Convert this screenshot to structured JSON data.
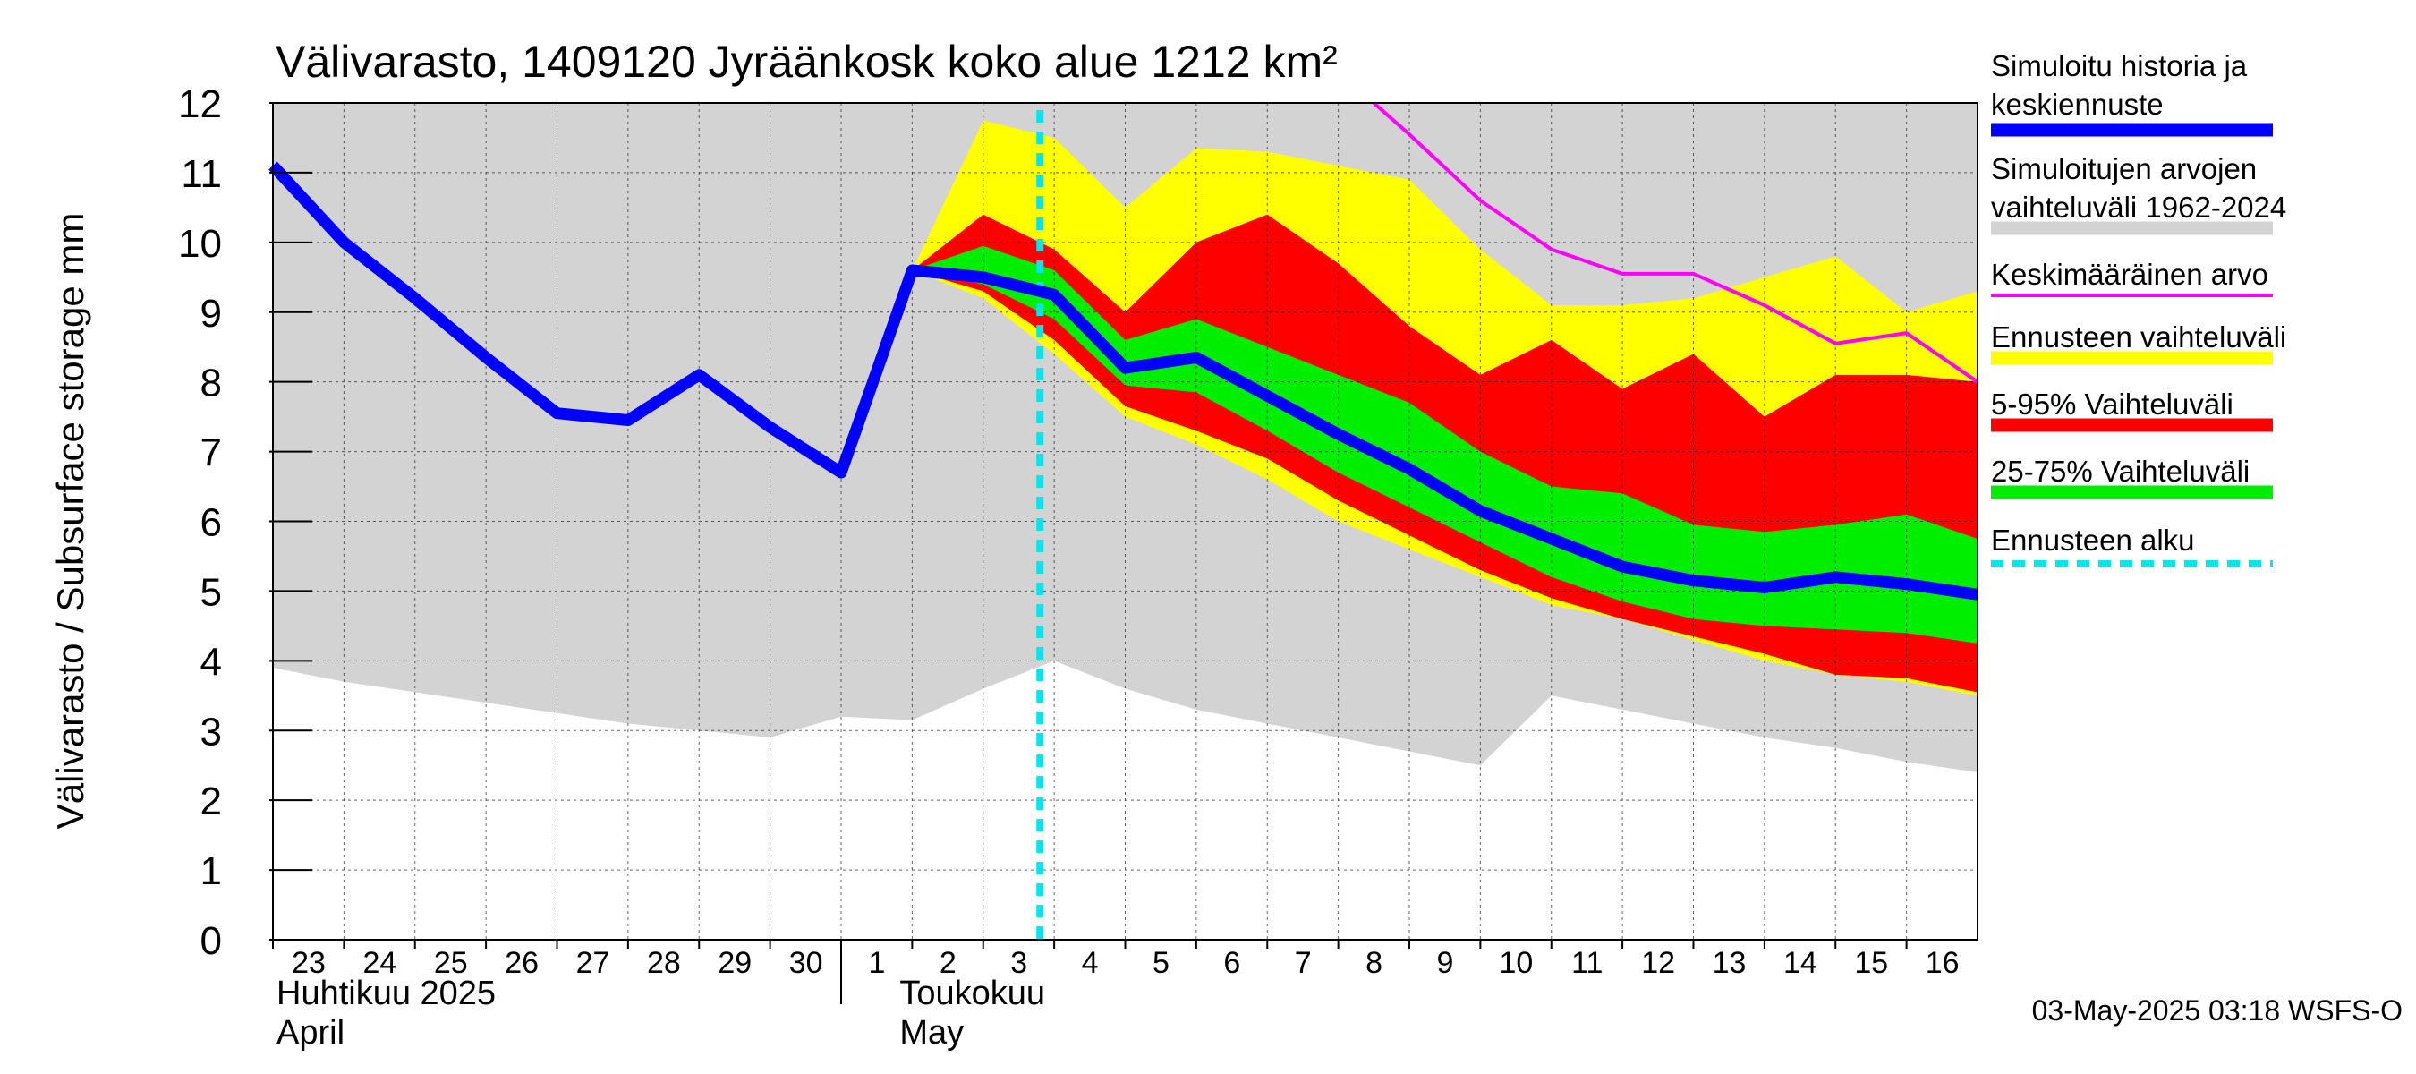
{
  "chart_data": {
    "type": "area",
    "title": "Välivarasto, 1409120 Jyräänkosk koko alue 1212 km²",
    "ylabel": "Välivarasto / Subsurface storage  mm",
    "ylim": [
      0,
      12
    ],
    "yticks": [
      0,
      1,
      2,
      3,
      4,
      5,
      6,
      7,
      8,
      9,
      10,
      11,
      12
    ],
    "grid": true,
    "legend_position": "right",
    "x_days": [
      "23",
      "24",
      "25",
      "26",
      "27",
      "28",
      "29",
      "30",
      "1",
      "2",
      "3",
      "4",
      "5",
      "6",
      "7",
      "8",
      "9",
      "10",
      "11",
      "12",
      "13",
      "14",
      "15",
      "16"
    ],
    "month_labels": [
      {
        "line1": "Huhtikuu  2025",
        "line2": "April"
      },
      {
        "line1": "Toukokuu",
        "line2": "May"
      }
    ],
    "forecast_start_day": 10.8,
    "series": [
      {
        "name": "Simuloitujen arvojen vaihteluväli 1962-2024",
        "color": "#d3d3d3",
        "x": [
          0,
          1,
          2,
          3,
          4,
          5,
          6,
          7,
          8,
          9,
          10,
          11,
          12,
          13,
          14,
          15,
          16,
          17,
          18,
          19,
          20,
          21,
          22,
          23,
          24
        ],
        "lower": [
          3.9,
          3.7,
          3.55,
          3.4,
          3.25,
          3.1,
          3.0,
          2.9,
          3.2,
          3.15,
          3.6,
          4.0,
          3.6,
          3.3,
          3.1,
          2.9,
          2.7,
          2.5,
          3.5,
          3.3,
          3.1,
          2.9,
          2.75,
          2.55,
          2.4
        ],
        "upper": [
          12,
          12,
          12,
          12,
          12,
          12,
          12,
          12,
          12,
          12,
          12,
          12,
          12,
          12,
          12,
          12,
          12,
          12,
          12,
          12,
          12,
          12,
          12,
          12,
          12
        ]
      },
      {
        "name": "Ennusteen vaihteluväli",
        "color": "#ffff00",
        "x": [
          9,
          10,
          11,
          12,
          13,
          14,
          15,
          16,
          17,
          18,
          19,
          20,
          21,
          22,
          23,
          24
        ],
        "lower": [
          9.6,
          9.2,
          8.4,
          7.5,
          7.1,
          6.6,
          6.0,
          5.6,
          5.2,
          4.8,
          4.6,
          4.3,
          4.0,
          3.8,
          3.7,
          3.5
        ],
        "upper": [
          9.6,
          11.75,
          11.5,
          10.5,
          11.35,
          11.3,
          11.1,
          10.9,
          9.9,
          9.1,
          9.1,
          9.2,
          9.5,
          9.8,
          9.0,
          9.3
        ]
      },
      {
        "name": "5-95% Vaihteluväli",
        "color": "#ff0000",
        "x": [
          9,
          10,
          11,
          12,
          13,
          14,
          15,
          16,
          17,
          18,
          19,
          20,
          21,
          22,
          23,
          24
        ],
        "lower": [
          9.6,
          9.3,
          8.6,
          7.65,
          7.3,
          6.9,
          6.3,
          5.8,
          5.3,
          4.9,
          4.6,
          4.35,
          4.1,
          3.8,
          3.75,
          3.55
        ],
        "upper": [
          9.6,
          10.4,
          9.9,
          9.0,
          10.0,
          10.4,
          9.7,
          8.8,
          8.1,
          8.6,
          7.9,
          8.4,
          7.5,
          8.1,
          8.1,
          8.0
        ]
      },
      {
        "name": "25-75% Vaihteluväli",
        "color": "#00ee00",
        "x": [
          9,
          10,
          11,
          12,
          13,
          14,
          15,
          16,
          17,
          18,
          19,
          20,
          21,
          22,
          23,
          24
        ],
        "lower": [
          9.6,
          9.4,
          8.9,
          7.95,
          7.85,
          7.3,
          6.7,
          6.2,
          5.7,
          5.2,
          4.85,
          4.6,
          4.5,
          4.45,
          4.4,
          4.25
        ],
        "upper": [
          9.6,
          9.95,
          9.6,
          8.6,
          8.9,
          8.5,
          8.1,
          7.7,
          7.0,
          6.5,
          6.4,
          5.95,
          5.85,
          5.95,
          6.1,
          5.75
        ]
      },
      {
        "name": "Keskimääräinen arvo",
        "color": "#ff00ff",
        "x": [
          15.5,
          16,
          17,
          18,
          19,
          20,
          21,
          22,
          23,
          24
        ],
        "y": [
          12.0,
          11.55,
          10.6,
          9.9,
          9.55,
          9.55,
          9.1,
          8.55,
          8.7,
          8.0
        ]
      },
      {
        "name": "Simuloitu historia ja keskiennuste",
        "color": "#0000ff",
        "x": [
          0,
          1,
          2,
          3,
          4,
          5,
          6,
          7,
          8,
          9,
          10,
          11,
          12,
          13,
          14,
          15,
          16,
          17,
          18,
          19,
          20,
          21,
          22,
          23,
          24
        ],
        "y": [
          11.1,
          10.0,
          9.2,
          8.35,
          7.55,
          7.45,
          8.1,
          7.35,
          6.7,
          9.6,
          9.5,
          9.25,
          8.2,
          8.35,
          7.8,
          7.25,
          6.75,
          6.15,
          5.75,
          5.35,
          5.15,
          5.05,
          5.2,
          5.1,
          4.95
        ]
      }
    ],
    "legend": [
      {
        "label": "Simuloitu historia ja keskiennuste",
        "color": "#0000ff",
        "style": "thick"
      },
      {
        "label": "Simuloitujen arvojen vaihteluväli 1962-2024",
        "color": "#d3d3d3",
        "style": "thick"
      },
      {
        "label": "Keskimääräinen arvo",
        "color": "#ff00ff",
        "style": "thin"
      },
      {
        "label": "Ennusteen vaihteluväli",
        "color": "#ffff00",
        "style": "thick"
      },
      {
        "label": "5-95% Vaihteluväli",
        "color": "#ff0000",
        "style": "thick"
      },
      {
        "label": "25-75% Vaihteluväli",
        "color": "#00ee00",
        "style": "thick"
      },
      {
        "label": "Ennusteen alku",
        "color": "#00e5ee",
        "style": "dashed"
      }
    ]
  },
  "footer": {
    "timestamp": "03-May-2025 03:18 WSFS-O"
  }
}
